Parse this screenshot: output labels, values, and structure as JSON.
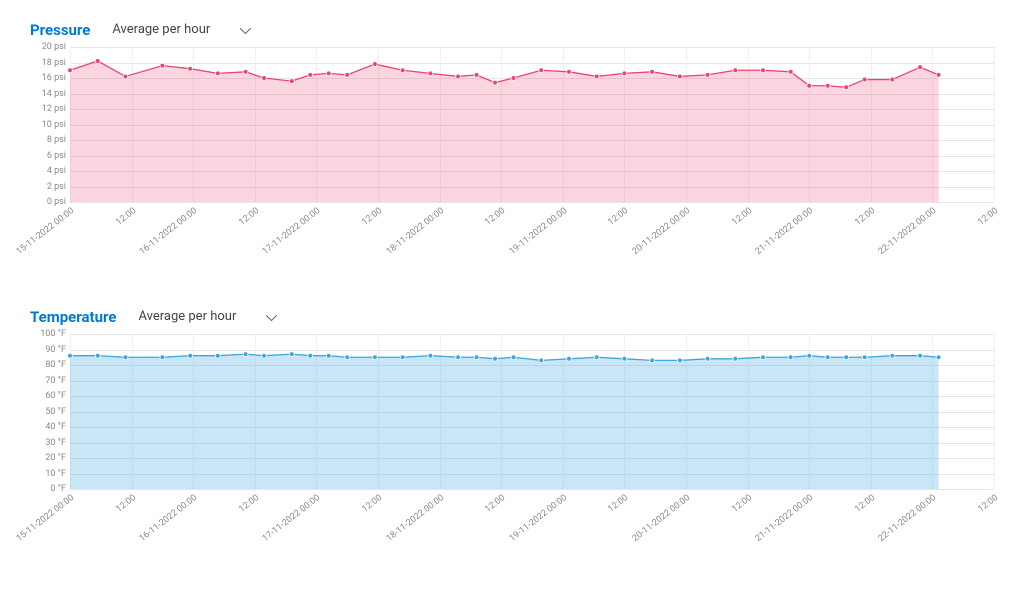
{
  "charts": [
    {
      "id": "pressure",
      "title": "Pressure",
      "dropdown_label": "Average per hour",
      "type": "area",
      "unit_suffix": " psi",
      "y_min": 0,
      "y_max": 20,
      "y_tick_step": 2,
      "series_color": "#ef426f",
      "fill_color": "rgba(239,66,111,0.22)",
      "marker_radius": 2.4,
      "line_width": 1.3,
      "background_color": "#ffffff",
      "grid_color": "#e6e6e6",
      "label_fontsize": 9,
      "title_color": "#007ad1",
      "x_labels": [
        "15-11-2022 00:00",
        "12:00",
        "16-11-2022 00:00",
        "12:00",
        "17-11-2022 00:00",
        "12:00",
        "18-11-2022 00:00",
        "12:00",
        "19-11-2022 00:00",
        "12:00",
        "20-11-2022 00:00",
        "12:00",
        "21-11-2022 00:00",
        "12:00",
        "22-11-2022 00:00",
        "12:00"
      ],
      "x_positions": [
        0,
        6.67,
        13.33,
        20,
        26.67,
        33.33,
        40,
        46.67,
        53.33,
        60,
        66.67,
        73.33,
        80,
        86.67,
        93.33,
        100
      ],
      "data_x": [
        0,
        3,
        6,
        10,
        13,
        16,
        19,
        21,
        24,
        26,
        28,
        30,
        33,
        36,
        39,
        42,
        44,
        46,
        48,
        51,
        54,
        57,
        60,
        63,
        66,
        69,
        72,
        75,
        78,
        80,
        82,
        84,
        86,
        89,
        92,
        94
      ],
      "data_y": [
        17.0,
        18.2,
        16.2,
        17.6,
        17.2,
        16.6,
        16.8,
        16.0,
        15.6,
        16.4,
        16.6,
        16.4,
        17.8,
        17.0,
        16.6,
        16.2,
        16.4,
        15.4,
        16.0,
        17.0,
        16.8,
        16.2,
        16.6,
        16.8,
        16.2,
        16.4,
        17.0,
        17.0,
        16.8,
        15.0,
        15.0,
        14.8,
        15.8,
        15.8,
        17.4,
        16.4
      ],
      "data_extent_pct": 94
    },
    {
      "id": "temperature",
      "title": "Temperature",
      "dropdown_label": "Average per hour",
      "type": "area",
      "unit_suffix": " °F",
      "y_min": 0,
      "y_max": 100,
      "y_tick_step": 10,
      "series_color": "#3ca6e0",
      "fill_color": "rgba(60,166,224,0.28)",
      "marker_radius": 2.4,
      "line_width": 1.3,
      "background_color": "#ffffff",
      "grid_color": "#e6e6e6",
      "label_fontsize": 9,
      "title_color": "#007ad1",
      "x_labels": [
        "15-11-2022 00:00",
        "12:00",
        "16-11-2022 00:00",
        "12:00",
        "17-11-2022 00:00",
        "12:00",
        "18-11-2022 00:00",
        "12:00",
        "19-11-2022 00:00",
        "12:00",
        "20-11-2022 00:00",
        "12:00",
        "21-11-2022 00:00",
        "12:00",
        "22-11-2022 00:00",
        "12:00"
      ],
      "x_positions": [
        0,
        6.67,
        13.33,
        20,
        26.67,
        33.33,
        40,
        46.67,
        53.33,
        60,
        66.67,
        73.33,
        80,
        86.67,
        93.33,
        100
      ],
      "data_x": [
        0,
        3,
        6,
        10,
        13,
        16,
        19,
        21,
        24,
        26,
        28,
        30,
        33,
        36,
        39,
        42,
        44,
        46,
        48,
        51,
        54,
        57,
        60,
        63,
        66,
        69,
        72,
        75,
        78,
        80,
        82,
        84,
        86,
        89,
        92,
        94
      ],
      "data_y": [
        86,
        86,
        85,
        85,
        86,
        86,
        87,
        86,
        87,
        86,
        86,
        85,
        85,
        85,
        86,
        85,
        85,
        84,
        85,
        83,
        84,
        85,
        84,
        83,
        83,
        84,
        84,
        85,
        85,
        86,
        85,
        85,
        85,
        86,
        86,
        85
      ],
      "data_extent_pct": 94
    }
  ]
}
